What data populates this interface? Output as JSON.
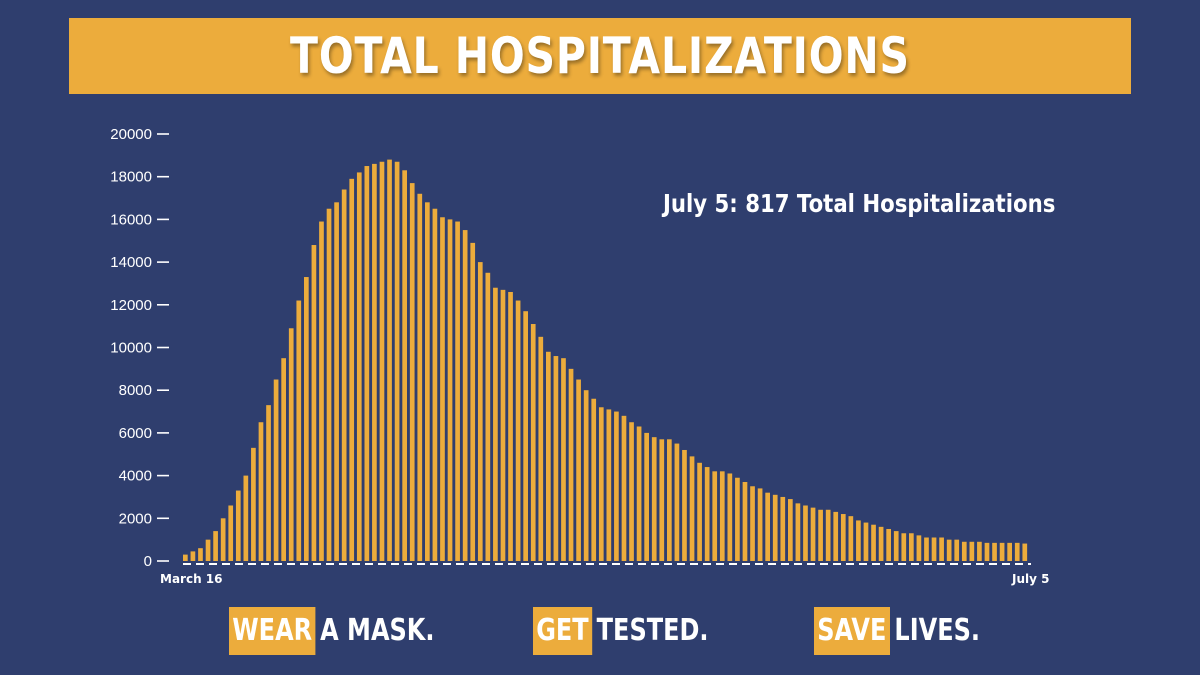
{
  "title": "TOTAL HOSPITALIZATIONS",
  "colors": {
    "background": "#2f3e6e",
    "accent": "#ecac3c",
    "text": "#ffffff"
  },
  "annotation": "July 5: 817 Total Hospitalizations",
  "slogans": [
    {
      "highlight": "WEAR",
      "rest": "A MASK."
    },
    {
      "highlight": "GET",
      "rest": "TESTED."
    },
    {
      "highlight": "SAVE",
      "rest": "LIVES."
    }
  ],
  "chart_data": {
    "type": "bar",
    "title": "",
    "xlabel": "",
    "ylabel": "",
    "ylim": [
      0,
      20000
    ],
    "yticks": [
      0,
      2000,
      4000,
      6000,
      8000,
      10000,
      12000,
      14000,
      16000,
      18000,
      20000
    ],
    "ytick_labels": [
      "0",
      "2000",
      "4000",
      "6000",
      "8000",
      "10000",
      "12000",
      "14000",
      "16000",
      "18000",
      "20000"
    ],
    "x_start_label": "March 16",
    "x_end_label": "July 5",
    "grid": false,
    "legend": "none",
    "series": [
      {
        "values": [
          300,
          450,
          600,
          1000,
          1400,
          2000,
          2600,
          3300,
          4000,
          5300,
          6500,
          7300,
          8500,
          9500,
          10900,
          12200,
          13300,
          14800,
          15900,
          16500,
          16800,
          17400,
          17900,
          18200,
          18500,
          18600,
          18700,
          18800,
          18700,
          18300,
          17700,
          17200,
          16800,
          16500,
          16100,
          16000,
          15900,
          15500,
          14900,
          14000,
          13500,
          12800,
          12700,
          12600,
          12200,
          11700,
          11100,
          10500,
          9800,
          9600,
          9500,
          9000,
          8500,
          8000,
          7600,
          7200,
          7100,
          7000,
          6800,
          6500,
          6300,
          6000,
          5800,
          5700,
          5700,
          5500,
          5200,
          4900,
          4600,
          4400,
          4200,
          4200,
          4100,
          3900,
          3700,
          3500,
          3400,
          3200,
          3100,
          3000,
          2900,
          2700,
          2600,
          2500,
          2400,
          2400,
          2300,
          2200,
          2100,
          1900,
          1800,
          1700,
          1600,
          1500,
          1400,
          1300,
          1300,
          1200,
          1100,
          1100,
          1100,
          1000,
          1000,
          900,
          900,
          900,
          850,
          850,
          850,
          850,
          850,
          817
        ]
      }
    ]
  }
}
